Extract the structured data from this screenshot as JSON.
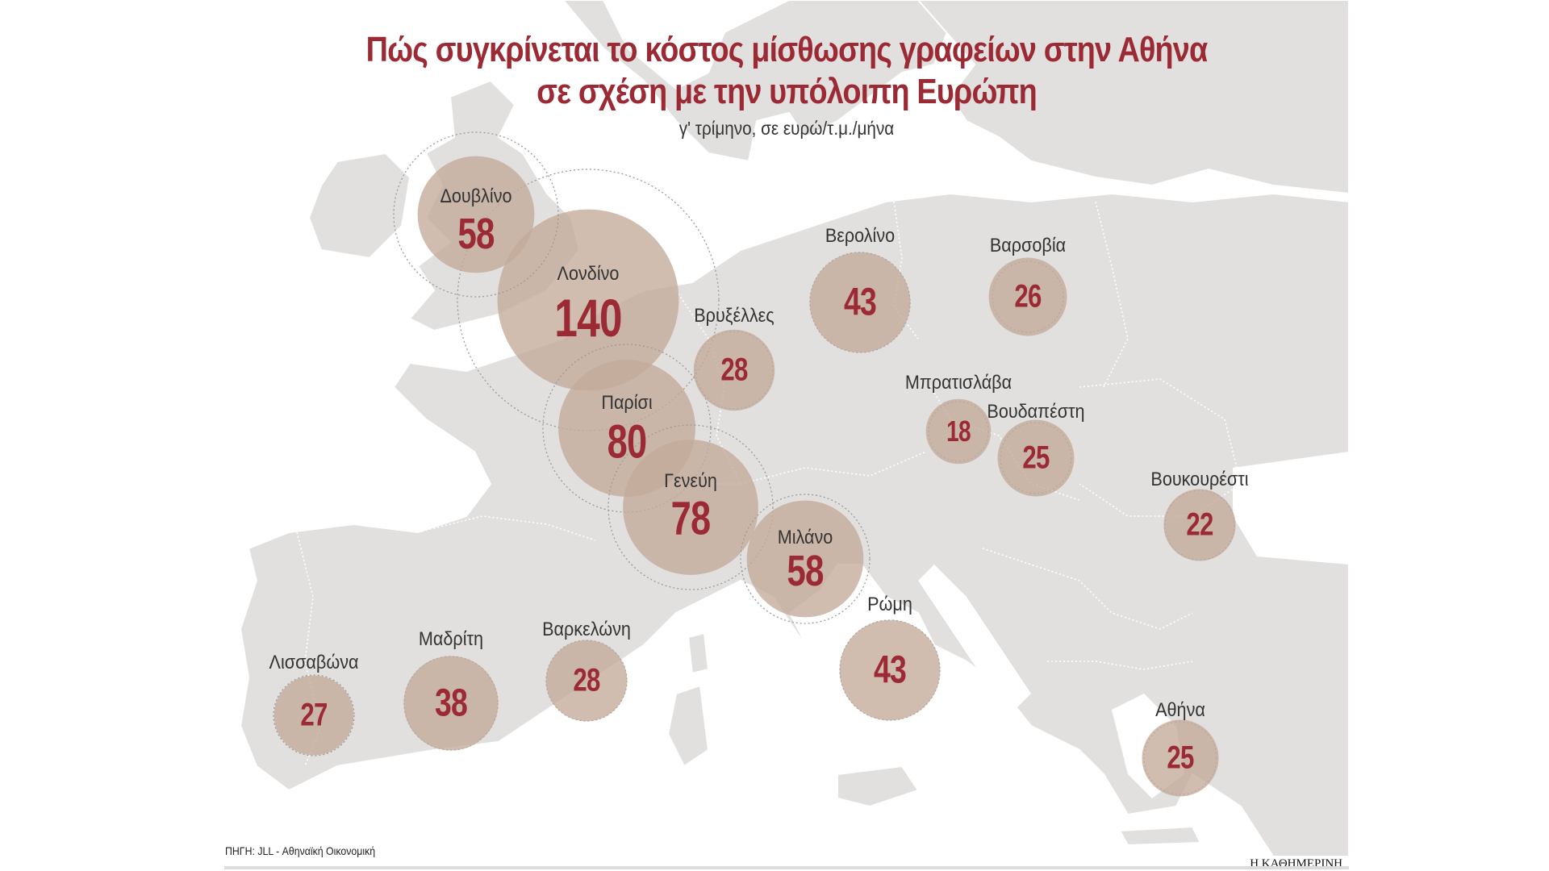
{
  "title": "Πώς συγκρίνεται το κόστος μίσθωσης γραφείων στην Αθήνα\nσε σχέση με την υπόλοιπη Ευρώπη",
  "subtitle": "γ' τρίμηνο, σε ευρώ/τ.μ./μήνα",
  "source": "ΠΗΓΗ: JLL - Αθηναϊκή Οικονομική",
  "publisher": "Η ΚΑΘΗΜΕΡΙΝΗ",
  "colors": {
    "accent": "#9b2a34",
    "bubble": "#c3ab9a",
    "land": "#e1e0de"
  },
  "chart_data": {
    "type": "scatter",
    "unit": "ευρώ/τ.μ./μήνα",
    "cities": [
      {
        "name": "Δουβλίνο",
        "value": 58
      },
      {
        "name": "Λονδίνο",
        "value": 140
      },
      {
        "name": "Βρυξέλλες",
        "value": 28
      },
      {
        "name": "Παρίσι",
        "value": 80
      },
      {
        "name": "Γενεύη",
        "value": 78
      },
      {
        "name": "Βερολίνο",
        "value": 43
      },
      {
        "name": "Βαρσοβία",
        "value": 26
      },
      {
        "name": "Μπρατισλάβα",
        "value": 18
      },
      {
        "name": "Βουδαπέστη",
        "value": 25
      },
      {
        "name": "Βουκουρέστι",
        "value": 22
      },
      {
        "name": "Μιλάνο",
        "value": 58
      },
      {
        "name": "Ρώμη",
        "value": 43
      },
      {
        "name": "Λισσαβώνα",
        "value": 27
      },
      {
        "name": "Μαδρίτη",
        "value": 38
      },
      {
        "name": "Βαρκελώνη",
        "value": 28
      },
      {
        "name": "Αθήνα",
        "value": 25
      }
    ]
  }
}
